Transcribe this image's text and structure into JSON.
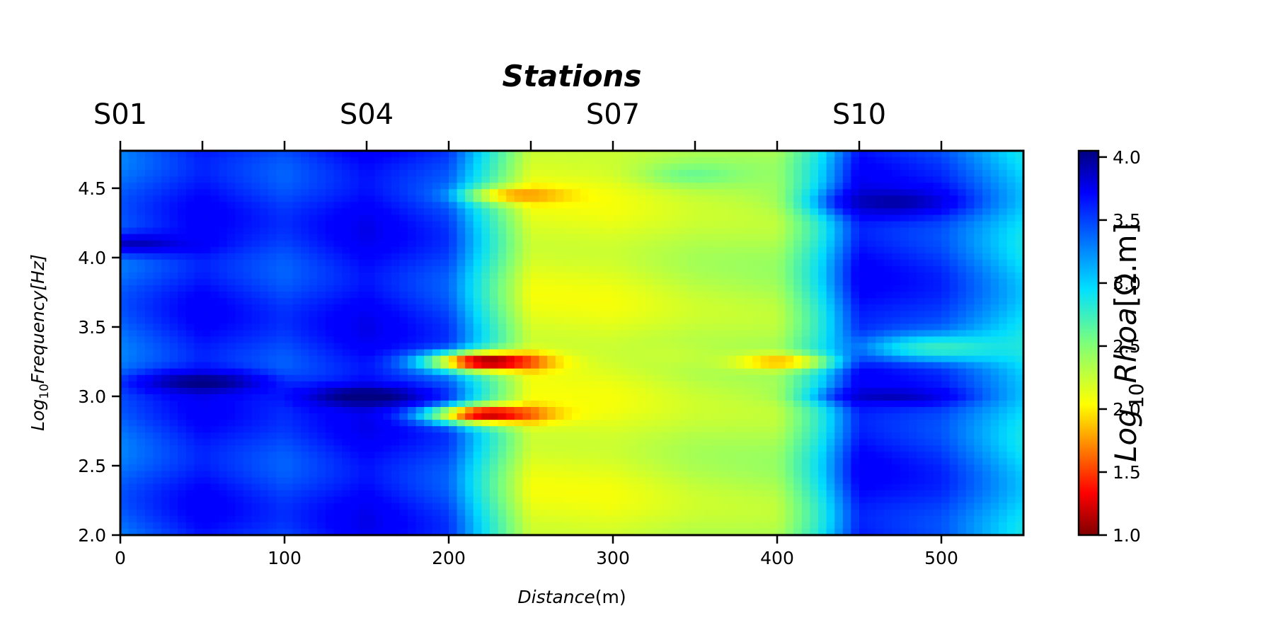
{
  "chart_data": {
    "type": "heatmap",
    "title": "Stations",
    "xlabel_text": "Distance",
    "xlabel_unit": "(m)",
    "ylabel_prefix": "Log",
    "ylabel_sub": "10",
    "ylabel_text": "Frequency",
    "ylabel_unit": "[Hz]",
    "colorbar_label_prefix": "Log",
    "colorbar_label_sub": "10",
    "colorbar_label_text": "Rhoa",
    "colorbar_label_unit": "[Ω.m]",
    "colormap": "jet_r",
    "xlim": [
      0,
      550
    ],
    "ylim": [
      2.0,
      4.77
    ],
    "clim": [
      1.0,
      4.05
    ],
    "xticks": [
      0,
      100,
      200,
      300,
      400,
      500
    ],
    "yticks": [
      2.0,
      2.5,
      3.0,
      3.5,
      4.0,
      4.5
    ],
    "ytick_labels": [
      "2.0",
      "2.5",
      "3.0",
      "3.5",
      "4.0",
      "4.5"
    ],
    "cbar_ticks": [
      1.0,
      1.5,
      2.0,
      2.5,
      3.0,
      3.5,
      4.0
    ],
    "cbar_tick_labels": [
      "1.0",
      "1.5",
      "2.0",
      "2.5",
      "3.0",
      "3.5",
      "4.0"
    ],
    "stations": {
      "positions": [
        0,
        50,
        100,
        150,
        200,
        250,
        300,
        350,
        400,
        450,
        500
      ],
      "labels": [
        "S01",
        "S04",
        "S07",
        "S10"
      ],
      "label_positions": [
        0,
        150,
        300,
        450
      ]
    },
    "columns_x": [
      0,
      50,
      100,
      150,
      200,
      225,
      250,
      300,
      350,
      400,
      425,
      450,
      500,
      550
    ],
    "base_profile": [
      3.35,
      3.65,
      3.45,
      3.7,
      3.45,
      2.8,
      2.15,
      2.15,
      2.3,
      2.35,
      2.9,
      3.65,
      3.5,
      3.0
    ],
    "anomalies": [
      {
        "x": 225,
        "y": 3.25,
        "value": 1.0,
        "sx": 35,
        "sy": 0.07
      },
      {
        "x": 225,
        "y": 2.87,
        "value": 1.15,
        "sx": 35,
        "sy": 0.07
      },
      {
        "x": 245,
        "y": 4.45,
        "value": 1.75,
        "sx": 30,
        "sy": 0.06
      },
      {
        "x": 400,
        "y": 3.25,
        "value": 1.8,
        "sx": 30,
        "sy": 0.06
      },
      {
        "x": 150,
        "y": 3.0,
        "value": 4.1,
        "sx": 40,
        "sy": 0.08
      },
      {
        "x": 50,
        "y": 3.1,
        "value": 4.05,
        "sx": 40,
        "sy": 0.08
      },
      {
        "x": 10,
        "y": 4.1,
        "value": 3.9,
        "sx": 40,
        "sy": 0.08
      },
      {
        "x": 470,
        "y": 4.4,
        "value": 3.95,
        "sx": 40,
        "sy": 0.1
      },
      {
        "x": 350,
        "y": 4.6,
        "value": 2.6,
        "sx": 30,
        "sy": 0.08
      },
      {
        "x": 330,
        "y": 3.3,
        "value": 2.25,
        "sx": 40,
        "sy": 0.1
      },
      {
        "x": 500,
        "y": 3.35,
        "value": 2.8,
        "sx": 50,
        "sy": 0.1
      },
      {
        "x": 470,
        "y": 3.0,
        "value": 3.9,
        "sx": 40,
        "sy": 0.06
      }
    ]
  }
}
